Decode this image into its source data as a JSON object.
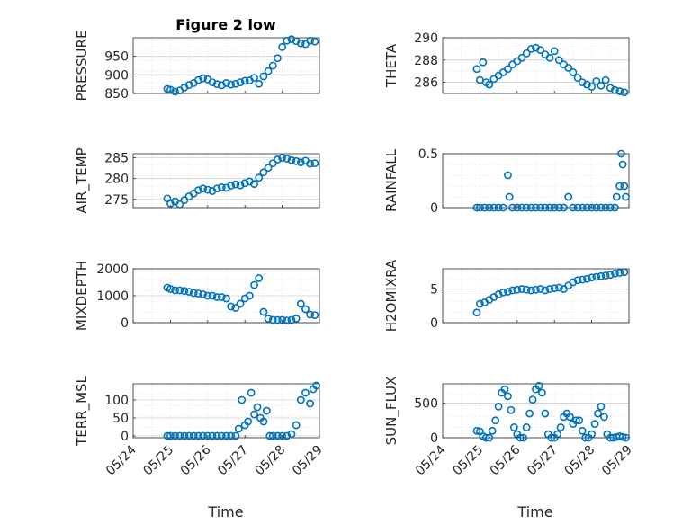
{
  "figure": {
    "title": "Figure 2 low",
    "marker_color": "#0072BD",
    "x_axis": {
      "label": "Time",
      "range": [
        "05/24",
        "05/29"
      ],
      "tick_labels": [
        "05/24",
        "05/25",
        "05/26",
        "05/27",
        "05/28",
        "05/29"
      ]
    }
  },
  "chart_data": [
    {
      "id": "pressure",
      "type": "scatter",
      "title": "Figure 2 low",
      "ylabel": "PRESSURE",
      "ylim": [
        850,
        1000
      ],
      "yticks": [
        850,
        900,
        950
      ],
      "grid": true,
      "x": [
        "05/24 22:00",
        "05/25 00:00",
        "05/25 03:00",
        "05/25 06:00",
        "05/25 09:00",
        "05/25 12:00",
        "05/25 15:00",
        "05/25 18:00",
        "05/25 21:00",
        "05/26 00:00",
        "05/26 03:00",
        "05/26 06:00",
        "05/26 09:00",
        "05/26 12:00",
        "05/26 15:00",
        "05/26 18:00",
        "05/26 21:00",
        "05/27 00:00",
        "05/27 03:00",
        "05/27 06:00",
        "05/27 09:00",
        "05/27 12:00",
        "05/27 15:00",
        "05/27 18:00",
        "05/27 21:00",
        "05/28 00:00",
        "05/28 03:00",
        "05/28 06:00",
        "05/28 09:00",
        "05/28 12:00",
        "05/28 15:00",
        "05/28 18:00",
        "05/28 21:00"
      ],
      "y": [
        862,
        860,
        855,
        858,
        866,
        873,
        878,
        886,
        891,
        888,
        880,
        875,
        872,
        878,
        874,
        876,
        880,
        884,
        885,
        892,
        876,
        896,
        910,
        925,
        945,
        975,
        992,
        996,
        991,
        985,
        983,
        992,
        990
      ]
    },
    {
      "id": "theta",
      "type": "scatter",
      "ylabel": "THETA",
      "ylim": [
        285,
        290
      ],
      "yticks": [
        286,
        288,
        290
      ],
      "grid": true,
      "x": [
        "05/24 22:00",
        "05/25 00:00",
        "05/25 02:00",
        "05/25 04:00",
        "05/25 06:00",
        "05/25 09:00",
        "05/25 12:00",
        "05/25 15:00",
        "05/25 18:00",
        "05/25 21:00",
        "05/26 00:00",
        "05/26 03:00",
        "05/26 06:00",
        "05/26 09:00",
        "05/26 12:00",
        "05/26 15:00",
        "05/26 18:00",
        "05/26 21:00",
        "05/27 00:00",
        "05/27 03:00",
        "05/27 06:00",
        "05/27 09:00",
        "05/27 12:00",
        "05/27 15:00",
        "05/27 18:00",
        "05/27 21:00",
        "05/28 00:00",
        "05/28 03:00",
        "05/28 06:00",
        "05/28 09:00",
        "05/28 12:00",
        "05/28 15:00",
        "05/28 18:00",
        "05/28 21:00"
      ],
      "y": [
        287.2,
        286.2,
        287.8,
        286.0,
        285.8,
        286.3,
        286.6,
        286.9,
        287.2,
        287.6,
        287.9,
        288.2,
        288.6,
        289.0,
        289.1,
        288.9,
        288.5,
        288.2,
        288.8,
        288.0,
        287.6,
        287.3,
        286.9,
        286.4,
        286.0,
        285.8,
        285.6,
        286.1,
        285.7,
        286.2,
        285.5,
        285.3,
        285.2,
        285.1
      ]
    },
    {
      "id": "air_temp",
      "type": "scatter",
      "ylabel": "AIR_TEMP",
      "ylim": [
        273,
        286
      ],
      "yticks": [
        275,
        280,
        285
      ],
      "grid": true,
      "x": [
        "05/24 22:00",
        "05/25 00:00",
        "05/25 03:00",
        "05/25 06:00",
        "05/25 09:00",
        "05/25 12:00",
        "05/25 15:00",
        "05/25 18:00",
        "05/25 21:00",
        "05/26 00:00",
        "05/26 03:00",
        "05/26 06:00",
        "05/26 09:00",
        "05/26 12:00",
        "05/26 15:00",
        "05/26 18:00",
        "05/26 21:00",
        "05/27 00:00",
        "05/27 03:00",
        "05/27 06:00",
        "05/27 09:00",
        "05/27 12:00",
        "05/27 15:00",
        "05/27 18:00",
        "05/27 21:00",
        "05/28 00:00",
        "05/28 03:00",
        "05/28 06:00",
        "05/28 09:00",
        "05/28 12:00",
        "05/28 15:00",
        "05/28 18:00",
        "05/28 21:00"
      ],
      "y": [
        275.2,
        274.0,
        274.5,
        273.8,
        274.8,
        275.7,
        276.4,
        277.2,
        277.6,
        277.3,
        277.0,
        277.6,
        277.9,
        277.8,
        278.3,
        278.6,
        278.4,
        278.9,
        279.3,
        278.7,
        280.2,
        281.5,
        282.6,
        283.7,
        284.6,
        285.0,
        284.8,
        284.4,
        284.2,
        283.9,
        284.3,
        283.6,
        283.7
      ]
    },
    {
      "id": "rainfall",
      "type": "scatter",
      "ylabel": "RAINFALL",
      "ylim": [
        0,
        0.5
      ],
      "yticks": [
        0,
        0.5
      ],
      "grid": true,
      "x": [
        "05/24 22:00",
        "05/25 00:00",
        "05/25 03:00",
        "05/25 06:00",
        "05/25 09:00",
        "05/25 12:00",
        "05/25 15:00",
        "05/25 18:00",
        "05/25 19:00",
        "05/25 21:00",
        "05/26 00:00",
        "05/26 03:00",
        "05/26 06:00",
        "05/26 09:00",
        "05/26 12:00",
        "05/26 15:00",
        "05/26 18:00",
        "05/26 21:00",
        "05/27 00:00",
        "05/27 03:00",
        "05/27 06:00",
        "05/27 09:00",
        "05/27 12:00",
        "05/27 15:00",
        "05/27 18:00",
        "05/27 21:00",
        "05/28 00:00",
        "05/28 03:00",
        "05/28 06:00",
        "05/28 09:00",
        "05/28 12:00",
        "05/28 15:00",
        "05/28 16:00",
        "05/28 18:00",
        "05/28 19:00",
        "05/28 20:00",
        "05/28 21:00",
        "05/28 22:00"
      ],
      "y": [
        0,
        0,
        0,
        0,
        0,
        0,
        0,
        0.3,
        0.1,
        0,
        0,
        0,
        0,
        0,
        0,
        0,
        0,
        0,
        0,
        0,
        0,
        0.1,
        0,
        0,
        0,
        0,
        0,
        0,
        0,
        0,
        0,
        0,
        0.1,
        0.2,
        0.5,
        0.4,
        0.2,
        0.1
      ]
    },
    {
      "id": "mixdepth",
      "type": "scatter",
      "ylabel": "MIXDEPTH",
      "ylim": [
        0,
        2000
      ],
      "yticks": [
        0,
        1000,
        2000
      ],
      "grid": true,
      "x": [
        "05/24 22:00",
        "05/25 00:00",
        "05/25 03:00",
        "05/25 06:00",
        "05/25 09:00",
        "05/25 12:00",
        "05/25 15:00",
        "05/25 18:00",
        "05/25 21:00",
        "05/26 00:00",
        "05/26 03:00",
        "05/26 06:00",
        "05/26 09:00",
        "05/26 12:00",
        "05/26 15:00",
        "05/26 18:00",
        "05/26 21:00",
        "05/27 00:00",
        "05/27 03:00",
        "05/27 06:00",
        "05/27 09:00",
        "05/27 12:00",
        "05/27 15:00",
        "05/27 18:00",
        "05/27 21:00",
        "05/28 00:00",
        "05/28 03:00",
        "05/28 06:00",
        "05/28 09:00",
        "05/28 12:00",
        "05/28 15:00",
        "05/28 18:00",
        "05/28 21:00"
      ],
      "y": [
        1300,
        1250,
        1200,
        1200,
        1180,
        1150,
        1100,
        1080,
        1050,
        1000,
        1000,
        950,
        950,
        900,
        600,
        550,
        700,
        900,
        1000,
        1400,
        1650,
        400,
        150,
        100,
        100,
        100,
        80,
        100,
        150,
        700,
        500,
        300,
        280
      ]
    },
    {
      "id": "h2omixra",
      "type": "scatter",
      "ylabel": "H2OMIXRA",
      "ylim": [
        0,
        8
      ],
      "yticks": [
        0,
        5
      ],
      "grid": true,
      "x": [
        "05/24 22:00",
        "05/25 00:00",
        "05/25 03:00",
        "05/25 06:00",
        "05/25 09:00",
        "05/25 12:00",
        "05/25 15:00",
        "05/25 18:00",
        "05/25 21:00",
        "05/26 00:00",
        "05/26 03:00",
        "05/26 06:00",
        "05/26 09:00",
        "05/26 12:00",
        "05/26 15:00",
        "05/26 18:00",
        "05/26 21:00",
        "05/27 00:00",
        "05/27 03:00",
        "05/27 06:00",
        "05/27 09:00",
        "05/27 12:00",
        "05/27 15:00",
        "05/27 18:00",
        "05/27 21:00",
        "05/28 00:00",
        "05/28 03:00",
        "05/28 06:00",
        "05/28 09:00",
        "05/28 12:00",
        "05/28 15:00",
        "05/28 18:00",
        "05/28 21:00"
      ],
      "y": [
        1.5,
        2.8,
        3.0,
        3.4,
        3.8,
        4.2,
        4.5,
        4.6,
        4.8,
        4.9,
        5.0,
        4.9,
        4.8,
        4.9,
        5.0,
        4.8,
        5.0,
        5.1,
        5.2,
        5.0,
        5.5,
        6.0,
        6.3,
        6.4,
        6.5,
        6.7,
        6.8,
        6.9,
        7.0,
        7.1,
        7.3,
        7.4,
        7.5
      ]
    },
    {
      "id": "terr_msl",
      "type": "scatter",
      "ylabel": "TERR_MSL",
      "ylim": [
        -5,
        145
      ],
      "yticks": [
        0,
        50,
        100
      ],
      "grid": true,
      "x": [
        "05/24 22:00",
        "05/25 00:00",
        "05/25 03:00",
        "05/25 06:00",
        "05/25 09:00",
        "05/25 12:00",
        "05/25 15:00",
        "05/25 18:00",
        "05/25 21:00",
        "05/26 00:00",
        "05/26 03:00",
        "05/26 06:00",
        "05/26 09:00",
        "05/26 12:00",
        "05/26 15:00",
        "05/26 18:00",
        "05/26 20:00",
        "05/26 22:00",
        "05/27 00:00",
        "05/27 02:00",
        "05/27 04:00",
        "05/27 06:00",
        "05/27 08:00",
        "05/27 10:00",
        "05/27 12:00",
        "05/27 14:00",
        "05/27 16:00",
        "05/27 18:00",
        "05/27 21:00",
        "05/28 00:00",
        "05/28 03:00",
        "05/28 06:00",
        "05/28 09:00",
        "05/28 12:00",
        "05/28 15:00",
        "05/28 18:00",
        "05/28 20:00",
        "05/28 22:00"
      ],
      "y": [
        0,
        0,
        0,
        0,
        0,
        0,
        0,
        0,
        0,
        0,
        0,
        0,
        0,
        0,
        0,
        0,
        20,
        100,
        30,
        40,
        120,
        60,
        80,
        50,
        40,
        70,
        0,
        0,
        0,
        0,
        0,
        5,
        30,
        100,
        120,
        90,
        130,
        140
      ]
    },
    {
      "id": "sun_flux",
      "type": "scatter",
      "ylabel": "SUN_FLUX",
      "ylim": [
        0,
        780
      ],
      "yticks": [
        0,
        500
      ],
      "grid": true,
      "x": [
        "05/24 22:00",
        "05/25 00:00",
        "05/25 02:00",
        "05/25 04:00",
        "05/25 06:00",
        "05/25 08:00",
        "05/25 10:00",
        "05/25 12:00",
        "05/25 14:00",
        "05/25 16:00",
        "05/25 18:00",
        "05/25 20:00",
        "05/25 22:00",
        "05/26 00:00",
        "05/26 02:00",
        "05/26 04:00",
        "05/26 06:00",
        "05/26 08:00",
        "05/26 10:00",
        "05/26 12:00",
        "05/26 14:00",
        "05/26 16:00",
        "05/26 18:00",
        "05/26 20:00",
        "05/26 22:00",
        "05/27 00:00",
        "05/27 02:00",
        "05/27 04:00",
        "05/27 06:00",
        "05/27 08:00",
        "05/27 10:00",
        "05/27 12:00",
        "05/27 14:00",
        "05/27 16:00",
        "05/27 18:00",
        "05/27 20:00",
        "05/27 22:00",
        "05/28 00:00",
        "05/28 02:00",
        "05/28 04:00",
        "05/28 06:00",
        "05/28 08:00",
        "05/28 10:00",
        "05/28 12:00",
        "05/28 14:00",
        "05/28 16:00",
        "05/28 18:00",
        "05/28 20:00",
        "05/28 22:00"
      ],
      "y": [
        100,
        90,
        20,
        0,
        0,
        100,
        250,
        450,
        650,
        700,
        600,
        400,
        150,
        50,
        0,
        0,
        150,
        350,
        550,
        700,
        750,
        650,
        350,
        50,
        0,
        0,
        50,
        150,
        300,
        350,
        300,
        200,
        250,
        250,
        100,
        0,
        0,
        50,
        200,
        350,
        450,
        300,
        50,
        0,
        0,
        10,
        20,
        10,
        0
      ]
    }
  ]
}
